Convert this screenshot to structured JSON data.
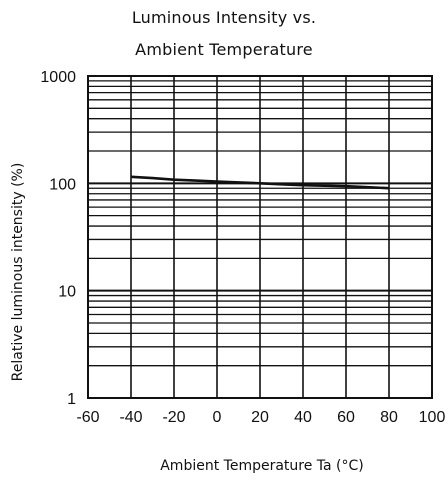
{
  "chart_data": {
    "type": "line",
    "title_line1": "Luminous Intensity vs.",
    "title_line2": "Ambient Temperature",
    "xlabel": "Ambient Temperature Ta (°C)",
    "ylabel": "Relative luminous intensity  (%)",
    "y_scale": "log",
    "xlim": [
      -60,
      100
    ],
    "ylim": [
      1,
      1000
    ],
    "x_ticks": [
      "-60",
      "-40",
      "-20",
      "0",
      "20",
      "40",
      "60",
      "80",
      "100"
    ],
    "y_ticks": [
      "1",
      "10",
      "100",
      "1000"
    ],
    "grid": true,
    "series": [
      {
        "x": [
          -40,
          -30,
          -20,
          -10,
          0,
          10,
          20,
          30,
          40,
          50,
          60,
          70,
          80
        ],
        "y": [
          115,
          112,
          108,
          106,
          104,
          102,
          100,
          98,
          96,
          95,
          94,
          92,
          90
        ]
      }
    ],
    "colors": {
      "grid": "#111111",
      "line": "#111111"
    }
  }
}
